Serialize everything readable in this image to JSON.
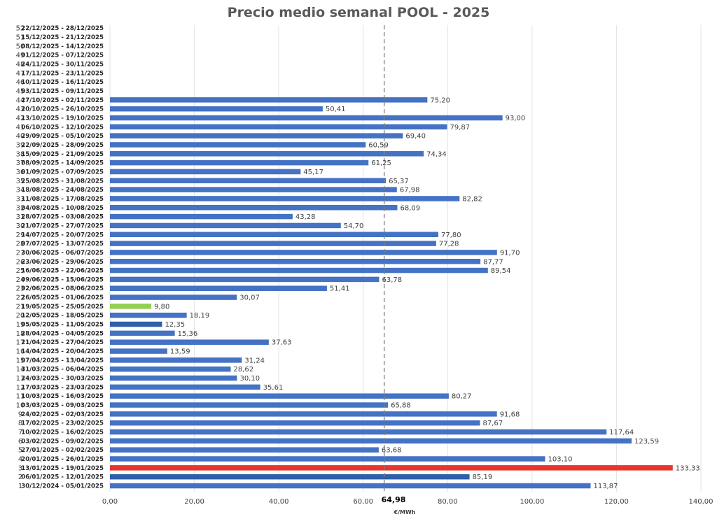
{
  "chart_data": {
    "type": "bar",
    "orientation": "horizontal",
    "title": "Precio medio semanal POOL - 2025",
    "xlabel": "€/MWh",
    "xlim": [
      0,
      140
    ],
    "x_ticks": [
      "0,00",
      "20,00",
      "40,00",
      "60,00",
      "80,00",
      "100,00",
      "120,00",
      "140,00"
    ],
    "grid": "vertical",
    "legend": "none",
    "average": {
      "value": 64.98,
      "label": "64,98"
    },
    "colors": {
      "default": "#4472C4",
      "dark": "#2E5FA8",
      "min": "#92D050",
      "max": "#E8352D"
    },
    "weeks": [
      1,
      2,
      3,
      4,
      5,
      6,
      7,
      8,
      9,
      10,
      11,
      12,
      13,
      14,
      15,
      16,
      17,
      18,
      19,
      20,
      21,
      22,
      23,
      24,
      25,
      26,
      27,
      28,
      29,
      30,
      31,
      32,
      33,
      34,
      35,
      36,
      37,
      38,
      39,
      40,
      41,
      42,
      43,
      44,
      45,
      46,
      47,
      48,
      49,
      50,
      51,
      52
    ],
    "categories": [
      "30/12/2024 - 05/01/2025",
      "06/01/2025 - 12/01/2025",
      "13/01/2025 - 19/01/2025",
      "20/01/2025 - 26/01/2025",
      "27/01/2025 - 02/02/2025",
      "03/02/2025 - 09/02/2025",
      "10/02/2025 - 16/02/2025",
      "17/02/2025 - 23/02/2025",
      "24/02/2025 - 02/03/2025",
      "03/03/2025 - 09/03/2025",
      "10/03/2025 - 16/03/2025",
      "17/03/2025 - 23/03/2025",
      "24/03/2025 - 30/03/2025",
      "31/03/2025 - 06/04/2025",
      "07/04/2025 - 13/04/2025",
      "14/04/2025 - 20/04/2025",
      "21/04/2025 - 27/04/2025",
      "28/04/2025 - 04/05/2025",
      "05/05/2025 - 11/05/2025",
      "12/05/2025 - 18/05/2025",
      "19/05/2025 - 25/05/2025",
      "26/05/2025 - 01/06/2025",
      "02/06/2025 - 08/06/2025",
      "09/06/2025 - 15/06/2025",
      "16/06/2025 - 22/06/2025",
      "23/06/2025 - 29/06/2025",
      "30/06/2025 - 06/07/2025",
      "07/07/2025 - 13/07/2025",
      "14/07/2025 - 20/07/2025",
      "21/07/2025 - 27/07/2025",
      "28/07/2025 - 03/08/2025",
      "04/08/2025 - 10/08/2025",
      "11/08/2025 - 17/08/2025",
      "18/08/2025 - 24/08/2025",
      "25/08/2025 - 31/08/2025",
      "01/09/2025 - 07/09/2025",
      "08/09/2025 - 14/09/2025",
      "15/09/2025 - 21/09/2025",
      "22/09/2025 - 28/09/2025",
      "29/09/2025 - 05/10/2025",
      "06/10/2025 - 12/10/2025",
      "13/10/2025 - 19/10/2025",
      "20/10/2025 - 26/10/2025",
      "27/10/2025 - 02/11/2025",
      "03/11/2025 - 09/11/2025",
      "10/11/2025 - 16/11/2025",
      "17/11/2025 - 23/11/2025",
      "24/11/2025 - 30/11/2025",
      "01/12/2025 - 07/12/2025",
      "08/12/2025 - 14/12/2025",
      "15/12/2025 - 21/12/2025",
      "22/12/2025 - 28/12/2025"
    ],
    "values": [
      113.87,
      85.19,
      133.33,
      103.1,
      63.68,
      123.59,
      117.64,
      87.67,
      91.68,
      65.88,
      80.27,
      35.61,
      30.1,
      28.62,
      31.24,
      13.59,
      37.63,
      15.36,
      12.35,
      18.19,
      9.8,
      30.07,
      51.41,
      63.78,
      89.54,
      87.77,
      91.7,
      77.28,
      77.8,
      54.7,
      43.28,
      68.09,
      82.82,
      67.98,
      65.37,
      45.17,
      61.25,
      74.34,
      60.59,
      69.4,
      79.87,
      93.0,
      50.41,
      75.2,
      null,
      null,
      null,
      null,
      null,
      null,
      null,
      null
    ],
    "value_labels": [
      "113,87",
      "85,19",
      "133,33",
      "103,10",
      "63,68",
      "123,59",
      "117,64",
      "87,67",
      "91,68",
      "65,88",
      "80,27",
      "35,61",
      "30,10",
      "28,62",
      "31,24",
      "13,59",
      "37,63",
      "15,36",
      "12,35",
      "18,19",
      "9,80",
      "30,07",
      "51,41",
      "63,78",
      "89,54",
      "87,77",
      "91,70",
      "77,28",
      "77,80",
      "54,70",
      "43,28",
      "68,09",
      "82,82",
      "67,98",
      "65,37",
      "45,17",
      "61,25",
      "74,34",
      "60,59",
      "69,40",
      "79,87",
      "93,00",
      "50,41",
      "75,20",
      "",
      "",
      "",
      "",
      "",
      "",
      "",
      ""
    ],
    "bar_colors": [
      "default",
      "dark",
      "max",
      "default",
      "default",
      "default",
      "default",
      "default",
      "default",
      "default",
      "default",
      "default",
      "default",
      "default",
      "default",
      "default",
      "default",
      "default",
      "dark",
      "default",
      "min",
      "default",
      "default",
      "default",
      "default",
      "default",
      "default",
      "default",
      "default",
      "default",
      "default",
      "default",
      "default",
      "default",
      "default",
      "default",
      "default",
      "default",
      "default",
      "default",
      "default",
      "default",
      "default",
      "default",
      "default",
      "default",
      "default",
      "default",
      "default",
      "default",
      "default",
      "default"
    ]
  }
}
